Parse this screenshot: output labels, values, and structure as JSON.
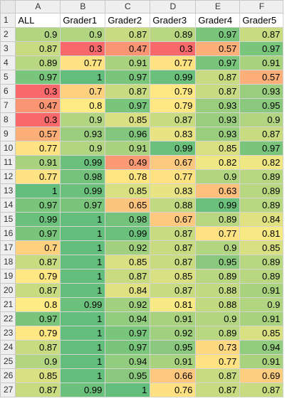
{
  "columns": [
    "A",
    "B",
    "C",
    "D",
    "E",
    "F"
  ],
  "row_numbers": [
    "1",
    "2",
    "3",
    "4",
    "5",
    "6",
    "7",
    "8",
    "9",
    "10",
    "11",
    "12",
    "13",
    "14",
    "15",
    "16",
    "17",
    "18",
    "19",
    "20",
    "21",
    "22",
    "23",
    "24",
    "25",
    "26",
    "27"
  ],
  "headers": [
    "ALL",
    "Grader1",
    "Grader2",
    "Grader3",
    "Grader4",
    "Grader5"
  ],
  "rows": [
    [
      "0.9",
      "0.9",
      "0.87",
      "0.89",
      "0.97",
      "0.87"
    ],
    [
      "0.87",
      "0.3",
      "0.47",
      "0.3",
      "0.57",
      "0.97"
    ],
    [
      "0.89",
      "0.77",
      "0.91",
      "0.77",
      "0.97",
      "0.91"
    ],
    [
      "0.97",
      "1",
      "0.97",
      "0.99",
      "0.87",
      "0.57"
    ],
    [
      "0.3",
      "0.7",
      "0.87",
      "0.79",
      "0.87",
      "0.93"
    ],
    [
      "0.47",
      "0.8",
      "0.97",
      "0.79",
      "0.93",
      "0.95"
    ],
    [
      "0.3",
      "0.9",
      "0.85",
      "0.87",
      "0.93",
      "0.9"
    ],
    [
      "0.57",
      "0.93",
      "0.96",
      "0.83",
      "0.93",
      "0.87"
    ],
    [
      "0.77",
      "0.9",
      "0.91",
      "0.99",
      "0.85",
      "0.97"
    ],
    [
      "0.91",
      "0.99",
      "0.49",
      "0.67",
      "0.82",
      "0.82"
    ],
    [
      "0.77",
      "0.98",
      "0.78",
      "0.77",
      "0.9",
      "0.89"
    ],
    [
      "1",
      "0.99",
      "0.85",
      "0.83",
      "0.63",
      "0.89"
    ],
    [
      "0.97",
      "0.97",
      "0.65",
      "0.88",
      "0.99",
      "0.89"
    ],
    [
      "0.99",
      "1",
      "0.98",
      "0.67",
      "0.89",
      "0.84"
    ],
    [
      "0.97",
      "1",
      "0.99",
      "0.87",
      "0.77",
      "0.81"
    ],
    [
      "0.7",
      "1",
      "0.92",
      "0.87",
      "0.9",
      "0.85"
    ],
    [
      "0.87",
      "1",
      "0.85",
      "0.87",
      "0.95",
      "0.89"
    ],
    [
      "0.79",
      "1",
      "0.87",
      "0.85",
      "0.89",
      "0.89"
    ],
    [
      "0.87",
      "1",
      "0.84",
      "0.87",
      "0.88",
      "0.91"
    ],
    [
      "0.8",
      "0.99",
      "0.92",
      "0.81",
      "0.88",
      "0.9"
    ],
    [
      "0.97",
      "1",
      "0.94",
      "0.91",
      "0.9",
      "0.91"
    ],
    [
      "0.79",
      "1",
      "0.97",
      "0.92",
      "0.89",
      "0.85"
    ],
    [
      "0.87",
      "1",
      "0.97",
      "0.95",
      "0.73",
      "0.94"
    ],
    [
      "0.9",
      "1",
      "0.94",
      "0.91",
      "0.77",
      "0.91"
    ],
    [
      "0.85",
      "1",
      "0.95",
      "0.66",
      "0.87",
      "0.69"
    ],
    [
      "0.87",
      "0.99",
      "1",
      "0.76",
      "0.87",
      "0.87"
    ]
  ],
  "color_scale": {
    "type": "3-color",
    "min": {
      "value": 0.3,
      "color": "#f8696b"
    },
    "mid": {
      "value": 0.8,
      "color": "#ffeb84"
    },
    "max": {
      "value": 1.0,
      "color": "#63be7b"
    }
  },
  "colors": {
    "header_bg": "#efefef",
    "gridline": "#d4d4d4"
  }
}
